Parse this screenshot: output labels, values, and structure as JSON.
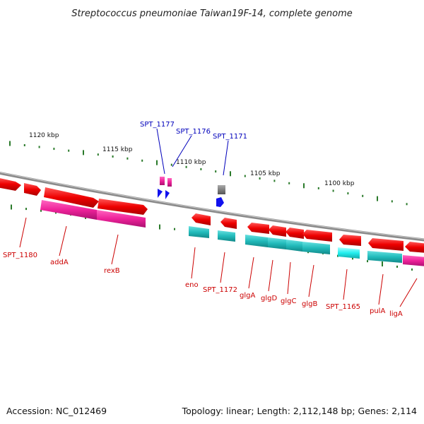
{
  "title": "Streptococcus pneumoniae Taiwan19F-14, complete genome",
  "footer": {
    "accession": "Accession: NC_012469",
    "summary": "Topology: linear; Length: 2,112,148 bp; Genes: 2,114"
  },
  "colors": {
    "backbone": "#8a8a8a",
    "tick": "#2a7a2a",
    "gene_red": "#ee0000",
    "gene_magenta": "#ee2299",
    "gene_cyan": "#22bbbb",
    "gene_cyan_light": "#22eeee",
    "rna_blue": "#1111ee",
    "gene_gray": "#777777",
    "label_red": "#cc0000",
    "label_blue": "#0000bb"
  },
  "scale_labels": [
    {
      "text": "1120 kbp"
    },
    {
      "text": "1115 kbp"
    },
    {
      "text": "1110 kbp"
    },
    {
      "text": "1105 kbp"
    },
    {
      "text": "1100 kbp"
    }
  ],
  "gene_labels_above": [
    {
      "text": "SPT_1177"
    },
    {
      "text": "SPT_1176"
    },
    {
      "text": "SPT_1171"
    }
  ],
  "gene_labels_below": [
    {
      "text": "SPT_1180"
    },
    {
      "text": "addA"
    },
    {
      "text": "rexB"
    },
    {
      "text": "eno"
    },
    {
      "text": "SPT_1172"
    },
    {
      "text": "glgA"
    },
    {
      "text": "glgD"
    },
    {
      "text": "glgC"
    },
    {
      "text": "glgB"
    },
    {
      "text": "SPT_1165"
    },
    {
      "text": "pulA"
    },
    {
      "text": "ligA"
    }
  ]
}
